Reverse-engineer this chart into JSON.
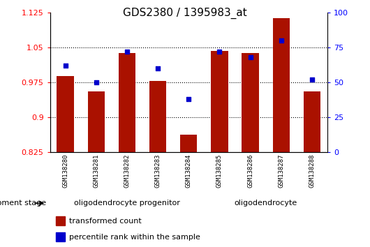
{
  "title": "GDS2380 / 1395983_at",
  "samples": [
    "GSM138280",
    "GSM138281",
    "GSM138282",
    "GSM138283",
    "GSM138284",
    "GSM138285",
    "GSM138286",
    "GSM138287",
    "GSM138288"
  ],
  "transformed_count": [
    0.988,
    0.955,
    1.038,
    0.978,
    0.862,
    1.042,
    1.038,
    1.112,
    0.955
  ],
  "percentile_rank": [
    62,
    50,
    72,
    60,
    38,
    72,
    68,
    80,
    52
  ],
  "ylim_left": [
    0.825,
    1.125
  ],
  "yticks_left": [
    0.825,
    0.9,
    0.975,
    1.05,
    1.125
  ],
  "yticks_right": [
    0,
    25,
    50,
    75,
    100
  ],
  "bar_color": "#AA1100",
  "dot_color": "#0000CC",
  "background_color": "#ffffff",
  "grid_color": "#000000",
  "stage_groups": [
    {
      "label": "oligodendrocyte progenitor",
      "start": 0,
      "end": 4,
      "color": "#AAFFAA"
    },
    {
      "label": "oligodendrocyte",
      "start": 5,
      "end": 8,
      "color": "#00DD44"
    }
  ],
  "legend_items": [
    {
      "label": "transformed count",
      "color": "#AA1100"
    },
    {
      "label": "percentile rank within the sample",
      "color": "#0000CC"
    }
  ],
  "stage_label": "development stage",
  "bar_width": 0.55
}
